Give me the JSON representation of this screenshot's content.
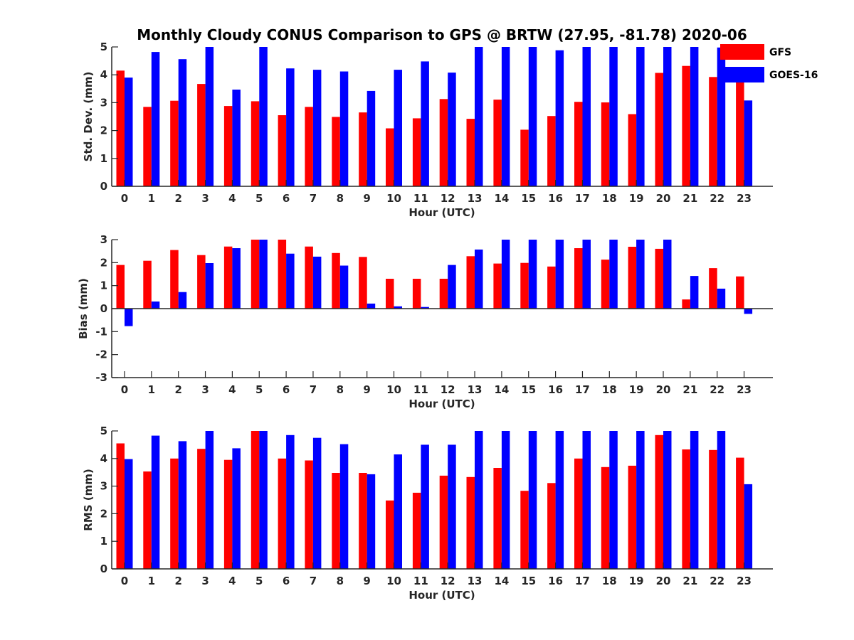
{
  "figure_title": "Monthly Cloudy CONUS Comparison to GPS @ BRTW (27.95, -81.78) 2020-06",
  "legend": [
    {
      "name": "GFS",
      "color": "#ff0000"
    },
    {
      "name": "GOES-16",
      "color": "#0000ff"
    }
  ],
  "chart_data": [
    {
      "type": "bar",
      "title": "Monthly Cloudy CONUS Comparison to GPS @ BRTW (27.95, -81.78) 2020-06",
      "xlabel": "Hour (UTC)",
      "ylabel": "Std. Dev. (mm)",
      "ylim": [
        0,
        5
      ],
      "yticks": [
        "0",
        "1",
        "2",
        "3",
        "4",
        "5"
      ],
      "categories": [
        "0",
        "1",
        "2",
        "3",
        "4",
        "5",
        "6",
        "7",
        "8",
        "9",
        "10",
        "11",
        "12",
        "13",
        "14",
        "15",
        "16",
        "17",
        "18",
        "19",
        "20",
        "21",
        "22",
        "23"
      ],
      "legend_position": "top-right",
      "series": [
        {
          "name": "GFS",
          "color": "#ff0000",
          "values": [
            4.15,
            2.85,
            3.07,
            3.67,
            2.88,
            3.05,
            2.55,
            2.85,
            2.49,
            2.65,
            2.08,
            2.44,
            3.13,
            2.42,
            3.11,
            2.03,
            2.52,
            3.03,
            3.01,
            2.59,
            4.07,
            4.32,
            3.92,
            3.9
          ]
        },
        {
          "name": "GOES-16",
          "color": "#0000ff",
          "values": [
            3.9,
            4.82,
            4.56,
            5.0,
            3.47,
            5.0,
            4.23,
            4.18,
            4.12,
            3.42,
            4.18,
            4.48,
            4.08,
            5.0,
            5.0,
            5.0,
            4.88,
            5.0,
            5.0,
            5.0,
            5.0,
            5.0,
            4.98,
            3.08
          ]
        }
      ]
    },
    {
      "type": "bar",
      "xlabel": "Hour (UTC)",
      "ylabel": "Bias (mm)",
      "ylim": [
        -3,
        3
      ],
      "yticks": [
        "-3",
        "-2",
        "-1",
        "0",
        "1",
        "2",
        "3"
      ],
      "categories": [
        "0",
        "1",
        "2",
        "3",
        "4",
        "5",
        "6",
        "7",
        "8",
        "9",
        "10",
        "11",
        "12",
        "13",
        "14",
        "15",
        "16",
        "17",
        "18",
        "19",
        "20",
        "21",
        "22",
        "23"
      ],
      "series": [
        {
          "name": "GFS",
          "color": "#ff0000",
          "values": [
            1.9,
            2.08,
            2.55,
            2.33,
            2.7,
            3.0,
            3.0,
            2.7,
            2.42,
            2.25,
            1.3,
            1.3,
            1.3,
            2.28,
            1.96,
            1.99,
            1.83,
            2.63,
            2.13,
            2.69,
            2.6,
            0.4,
            1.76,
            1.4
          ]
        },
        {
          "name": "GOES-16",
          "color": "#0000ff",
          "values": [
            -0.76,
            0.31,
            0.72,
            1.98,
            2.63,
            3.0,
            2.39,
            2.26,
            1.87,
            0.22,
            0.1,
            0.07,
            1.9,
            2.57,
            3.0,
            3.0,
            3.0,
            3.0,
            3.0,
            3.0,
            3.0,
            1.42,
            0.87,
            -0.23
          ]
        }
      ]
    },
    {
      "type": "bar",
      "xlabel": "Hour (UTC)",
      "ylabel": "RMS (mm)",
      "ylim": [
        0,
        5
      ],
      "yticks": [
        "0",
        "1",
        "2",
        "3",
        "4",
        "5"
      ],
      "categories": [
        "0",
        "1",
        "2",
        "3",
        "4",
        "5",
        "6",
        "7",
        "8",
        "9",
        "10",
        "11",
        "12",
        "13",
        "14",
        "15",
        "16",
        "17",
        "18",
        "19",
        "20",
        "21",
        "22",
        "23"
      ],
      "series": [
        {
          "name": "GFS",
          "color": "#ff0000",
          "values": [
            4.55,
            3.53,
            4.0,
            4.35,
            3.95,
            5.0,
            4.0,
            3.93,
            3.48,
            3.48,
            2.48,
            2.76,
            3.38,
            3.33,
            3.66,
            2.83,
            3.11,
            4.0,
            3.69,
            3.74,
            4.85,
            4.33,
            4.31,
            4.03
          ]
        },
        {
          "name": "GOES-16",
          "color": "#0000ff",
          "values": [
            3.98,
            4.83,
            4.63,
            5.0,
            4.37,
            5.0,
            4.85,
            4.75,
            4.52,
            3.43,
            4.15,
            4.5,
            4.5,
            5.0,
            5.0,
            5.0,
            5.0,
            5.0,
            5.0,
            5.0,
            5.0,
            5.0,
            5.0,
            3.07
          ]
        }
      ]
    }
  ]
}
